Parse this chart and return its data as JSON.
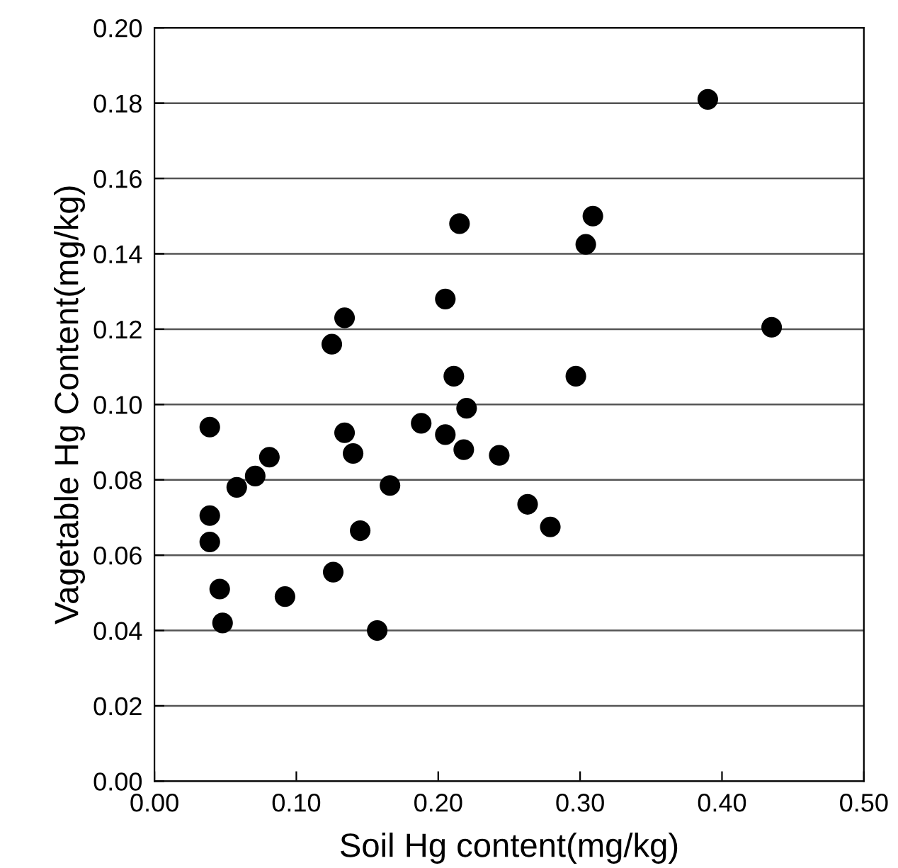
{
  "chart_data": {
    "type": "scatter",
    "xlabel": "Soil Hg content(mg/kg)",
    "ylabel": "Vagetable Hg Content(mg/kg)",
    "x": [
      0.039,
      0.039,
      0.039,
      0.046,
      0.048,
      0.058,
      0.071,
      0.081,
      0.092,
      0.125,
      0.134,
      0.134,
      0.14,
      0.126,
      0.145,
      0.166,
      0.157,
      0.188,
      0.205,
      0.205,
      0.215,
      0.211,
      0.22,
      0.218,
      0.243,
      0.263,
      0.279,
      0.297,
      0.304,
      0.309,
      0.39,
      0.435
    ],
    "values": [
      0.094,
      0.0705,
      0.0635,
      0.051,
      0.042,
      0.078,
      0.081,
      0.086,
      0.049,
      0.116,
      0.123,
      0.0925,
      0.087,
      0.0555,
      0.0665,
      0.0785,
      0.04,
      0.095,
      0.128,
      0.092,
      0.148,
      0.1075,
      0.099,
      0.088,
      0.0865,
      0.0735,
      0.0675,
      0.1075,
      0.1425,
      0.15,
      0.181,
      0.1205
    ],
    "color": "#000000",
    "marker": "circle",
    "grid": "y",
    "xlim": [
      0,
      0.5
    ],
    "xticks": [
      {
        "value": 0,
        "label": "0.00"
      },
      {
        "value": 0.1,
        "label": "0.10"
      },
      {
        "value": 0.2,
        "label": "0.20"
      },
      {
        "value": 0.3,
        "label": "0.30"
      },
      {
        "value": 0.4,
        "label": "0.40"
      },
      {
        "value": 0.5,
        "label": "0.50"
      }
    ],
    "ylim": [
      0,
      0.2
    ],
    "yticks": [
      {
        "value": 0,
        "label": "0.00"
      },
      {
        "value": 0.02,
        "label": "0.02"
      },
      {
        "value": 0.04,
        "label": "0.04"
      },
      {
        "value": 0.06,
        "label": "0.06"
      },
      {
        "value": 0.08,
        "label": "0.08"
      },
      {
        "value": 0.1,
        "label": "0.10"
      },
      {
        "value": 0.12,
        "label": "0.12"
      },
      {
        "value": 0.14,
        "label": "0.14"
      },
      {
        "value": 0.16,
        "label": "0.16"
      },
      {
        "value": 0.18,
        "label": "0.18"
      },
      {
        "value": 0.2,
        "label": "0.20"
      }
    ]
  }
}
